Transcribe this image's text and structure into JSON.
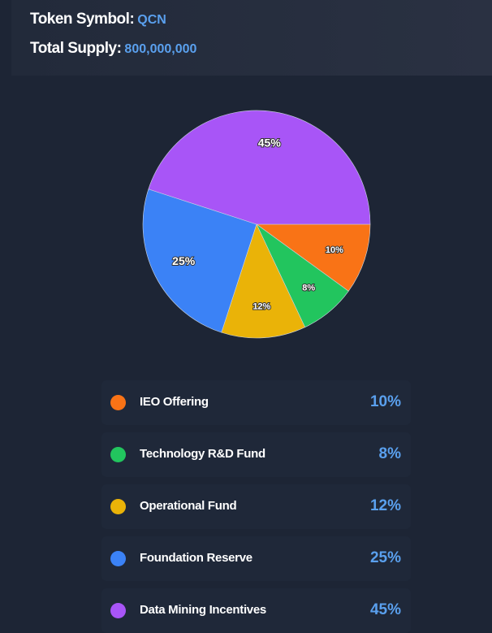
{
  "header": {
    "symbol_label": "Token Symbol:",
    "symbol": "QCN",
    "supply_label": "Total Supply:",
    "supply": "800,000,000"
  },
  "chart_data": {
    "type": "pie",
    "categories": [
      "IEO Offering",
      "Technology R&D Fund",
      "Operational Fund",
      "Foundation Reserve",
      "Data Mining Incentives"
    ],
    "values": [
      10,
      8,
      12,
      25,
      45
    ],
    "labels": [
      "10%",
      "8%",
      "12%",
      "25%",
      "45%"
    ],
    "colors": [
      "#f97316",
      "#22c55e",
      "#eab308",
      "#3b82f6",
      "#a855f7"
    ],
    "start": "3 o'clock, clockwise"
  }
}
